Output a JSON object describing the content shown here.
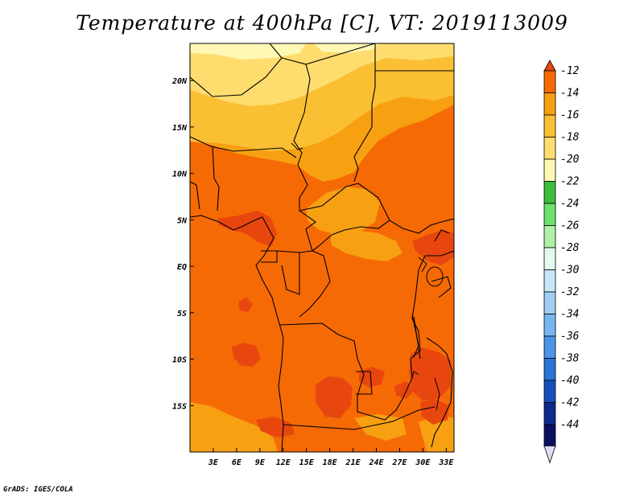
{
  "title": "Temperature at 400hPa [C], VT: 2019113009",
  "credit": "GrADS: IGES/COLA",
  "map": {
    "variable": "Temperature",
    "level": "400hPa",
    "units": "C",
    "valid_time": "2019113009",
    "lon_range": [
      0,
      34
    ],
    "lat_range": [
      -20,
      24
    ],
    "lon_ticks": [
      {
        "value": 3,
        "label": "3E"
      },
      {
        "value": 6,
        "label": "6E"
      },
      {
        "value": 9,
        "label": "9E"
      },
      {
        "value": 12,
        "label": "12E"
      },
      {
        "value": 15,
        "label": "15E"
      },
      {
        "value": 18,
        "label": "18E"
      },
      {
        "value": 21,
        "label": "21E"
      },
      {
        "value": 24,
        "label": "24E"
      },
      {
        "value": 27,
        "label": "27E"
      },
      {
        "value": 30,
        "label": "30E"
      },
      {
        "value": 33,
        "label": "33E"
      }
    ],
    "lat_ticks": [
      {
        "value": 20,
        "label": "20N"
      },
      {
        "value": 15,
        "label": "15N"
      },
      {
        "value": 10,
        "label": "10N"
      },
      {
        "value": 5,
        "label": "5N"
      },
      {
        "value": 0,
        "label": "EQ"
      },
      {
        "value": -5,
        "label": "5S"
      },
      {
        "value": -10,
        "label": "10S"
      },
      {
        "value": -15,
        "label": "15S"
      }
    ]
  },
  "colorbar": {
    "labels": [
      "-12",
      "-14",
      "-16",
      "-18",
      "-20",
      "-22",
      "-24",
      "-26",
      "-28",
      "-30",
      "-32",
      "-34",
      "-36",
      "-38",
      "-40",
      "-42",
      "-44"
    ],
    "colors": [
      "#e8460f",
      "#f66a05",
      "#f7a012",
      "#fbbf33",
      "#fedc6e",
      "#fef8b4",
      "#3bbf3b",
      "#6fe16f",
      "#b0f0a8",
      "#e6fbef",
      "#c8e6f8",
      "#a0cef5",
      "#78b6f0",
      "#4c96e8",
      "#2a74d8",
      "#1850bb",
      "#0e2a8a",
      "#0a0f60",
      "#dcdcf6"
    ]
  }
}
